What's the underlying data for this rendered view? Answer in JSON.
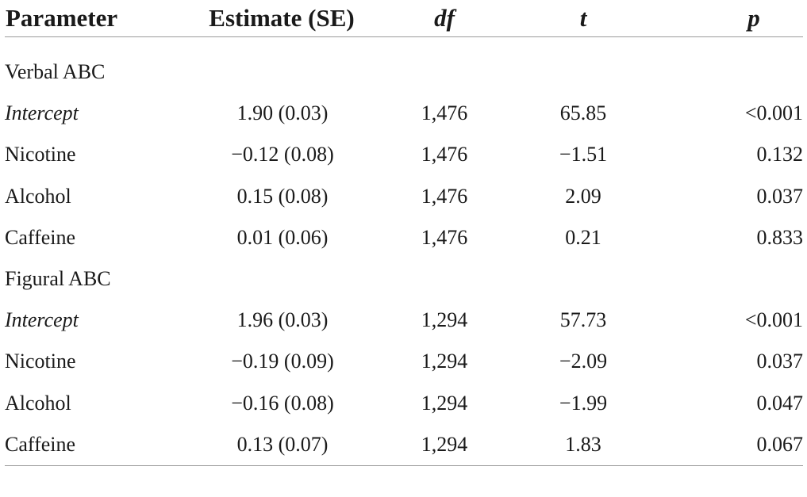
{
  "table": {
    "headers": {
      "parameter": "Parameter",
      "estimate": "Estimate (SE)",
      "df": "df",
      "t": "t",
      "p": "p"
    },
    "groups": [
      {
        "label": "Verbal ABC",
        "rows": [
          {
            "parameter": "Intercept",
            "estimate": "1.90 (0.03)",
            "df": "1,476",
            "t": "65.85",
            "p": "<0.001"
          },
          {
            "parameter": "Nicotine",
            "estimate": "−0.12 (0.08)",
            "df": "1,476",
            "t": "−1.51",
            "p": "0.132"
          },
          {
            "parameter": "Alcohol",
            "estimate": "0.15 (0.08)",
            "df": "1,476",
            "t": "2.09",
            "p": "0.037"
          },
          {
            "parameter": "Caffeine",
            "estimate": "0.01 (0.06)",
            "df": "1,476",
            "t": "0.21",
            "p": "0.833"
          }
        ]
      },
      {
        "label": "Figural ABC",
        "rows": [
          {
            "parameter": "Intercept",
            "estimate": "1.96 (0.03)",
            "df": "1,294",
            "t": "57.73",
            "p": "<0.001"
          },
          {
            "parameter": "Nicotine",
            "estimate": "−0.19 (0.09)",
            "df": "1,294",
            "t": "−2.09",
            "p": "0.037"
          },
          {
            "parameter": "Alcohol",
            "estimate": "−0.16 (0.08)",
            "df": "1,294",
            "t": "−1.99",
            "p": "0.047"
          },
          {
            "parameter": "Caffeine",
            "estimate": "0.13 (0.07)",
            "df": "1,294",
            "t": "1.83",
            "p": "0.067"
          }
        ]
      }
    ]
  }
}
